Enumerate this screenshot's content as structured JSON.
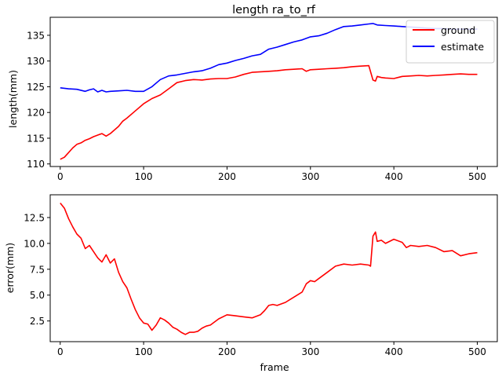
{
  "chart_data": [
    {
      "type": "line",
      "title": "length ra_to_rf",
      "xlabel": "",
      "ylabel": "length(mm)",
      "xlim": [
        -12,
        524
      ],
      "ylim": [
        109.5,
        138.5
      ],
      "xticks": [
        0,
        100,
        200,
        300,
        400,
        500
      ],
      "yticks": [
        110,
        115,
        120,
        125,
        130,
        135
      ],
      "grid": false,
      "legend_position": "top-right",
      "series": [
        {
          "name": "ground",
          "color": "#ff0000",
          "x": [
            0,
            5,
            10,
            15,
            20,
            25,
            30,
            35,
            40,
            45,
            50,
            55,
            60,
            65,
            70,
            75,
            80,
            90,
            100,
            110,
            120,
            130,
            140,
            150,
            160,
            170,
            180,
            190,
            200,
            210,
            220,
            230,
            240,
            250,
            260,
            270,
            280,
            290,
            295,
            300,
            310,
            320,
            330,
            340,
            350,
            360,
            370,
            375,
            378,
            380,
            385,
            390,
            400,
            410,
            420,
            430,
            440,
            450,
            460,
            470,
            480,
            490,
            500
          ],
          "y": [
            110.9,
            111.3,
            112.2,
            113.1,
            113.8,
            114.1,
            114.6,
            114.9,
            115.3,
            115.6,
            115.9,
            115.4,
            115.9,
            116.6,
            117.3,
            118.3,
            118.9,
            120.3,
            121.7,
            122.7,
            123.4,
            124.6,
            125.8,
            126.2,
            126.4,
            126.3,
            126.5,
            126.6,
            126.6,
            126.9,
            127.4,
            127.8,
            127.9,
            128.0,
            128.1,
            128.3,
            128.4,
            128.5,
            128.0,
            128.3,
            128.4,
            128.5,
            128.6,
            128.7,
            128.9,
            129.0,
            129.1,
            126.3,
            126.1,
            127.0,
            126.8,
            126.7,
            126.6,
            127.0,
            127.1,
            127.2,
            127.1,
            127.2,
            127.3,
            127.4,
            127.5,
            127.4,
            127.4
          ]
        },
        {
          "name": "estimate",
          "color": "#0000ff",
          "x": [
            0,
            10,
            20,
            30,
            35,
            40,
            45,
            50,
            55,
            60,
            70,
            80,
            90,
            100,
            110,
            120,
            130,
            140,
            150,
            160,
            170,
            180,
            190,
            200,
            210,
            220,
            230,
            240,
            250,
            260,
            270,
            280,
            290,
            300,
            310,
            320,
            330,
            340,
            350,
            360,
            370,
            375,
            380,
            390,
            400,
            410,
            420,
            430,
            440,
            450,
            460,
            470,
            480,
            490,
            500
          ],
          "y": [
            124.8,
            124.6,
            124.5,
            124.1,
            124.4,
            124.6,
            124.0,
            124.3,
            124.0,
            124.1,
            124.2,
            124.3,
            124.1,
            124.1,
            125.0,
            126.4,
            127.1,
            127.3,
            127.6,
            127.9,
            128.1,
            128.6,
            129.3,
            129.6,
            130.1,
            130.5,
            131.0,
            131.3,
            132.3,
            132.7,
            133.2,
            133.7,
            134.1,
            134.7,
            134.9,
            135.4,
            136.1,
            136.7,
            136.8,
            137.0,
            137.2,
            137.3,
            137.0,
            136.9,
            136.8,
            136.7,
            136.6,
            136.5,
            136.4,
            136.3,
            136.3,
            136.2,
            136.2,
            136.2,
            136.2
          ]
        }
      ]
    },
    {
      "type": "line",
      "title": "",
      "xlabel": "frame",
      "ylabel": "error(mm)",
      "xlim": [
        -12,
        524
      ],
      "ylim": [
        0.5,
        14.7
      ],
      "xticks": [
        0,
        100,
        200,
        300,
        400,
        500
      ],
      "yticks": [
        2.5,
        5.0,
        7.5,
        10.0,
        12.5
      ],
      "ytick_labels": [
        "2.5",
        "5.0",
        "7.5",
        "10.0",
        "12.5"
      ],
      "grid": false,
      "series": [
        {
          "name": "",
          "color": "#ff0000",
          "x": [
            0,
            5,
            10,
            15,
            20,
            25,
            30,
            35,
            40,
            45,
            50,
            55,
            60,
            65,
            70,
            75,
            80,
            85,
            90,
            95,
            100,
            105,
            110,
            115,
            120,
            125,
            130,
            135,
            140,
            145,
            150,
            155,
            160,
            165,
            170,
            175,
            180,
            190,
            200,
            210,
            220,
            230,
            240,
            245,
            250,
            255,
            260,
            270,
            280,
            290,
            295,
            300,
            305,
            310,
            320,
            330,
            340,
            350,
            360,
            370,
            372,
            375,
            378,
            380,
            385,
            390,
            400,
            410,
            415,
            420,
            430,
            440,
            450,
            460,
            470,
            480,
            490,
            500
          ],
          "y": [
            13.9,
            13.4,
            12.4,
            11.6,
            10.9,
            10.5,
            9.5,
            9.8,
            9.2,
            8.6,
            8.2,
            8.9,
            8.1,
            8.5,
            7.2,
            6.3,
            5.7,
            4.6,
            3.6,
            2.8,
            2.3,
            2.2,
            1.6,
            2.1,
            2.8,
            2.6,
            2.3,
            1.9,
            1.7,
            1.4,
            1.2,
            1.4,
            1.4,
            1.5,
            1.8,
            2.0,
            2.1,
            2.7,
            3.1,
            3.0,
            2.9,
            2.8,
            3.1,
            3.5,
            4.0,
            4.1,
            4.0,
            4.3,
            4.8,
            5.3,
            6.1,
            6.4,
            6.3,
            6.6,
            7.2,
            7.8,
            8.0,
            7.9,
            8.0,
            7.9,
            7.8,
            10.7,
            11.1,
            10.2,
            10.3,
            10.0,
            10.4,
            10.1,
            9.6,
            9.8,
            9.7,
            9.8,
            9.6,
            9.2,
            9.3,
            8.8,
            9.0,
            9.1
          ]
        }
      ]
    }
  ]
}
